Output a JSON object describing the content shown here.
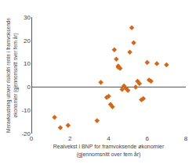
{
  "chart_data": {
    "type": "scatter",
    "xlabel": "Realvekst i BNP for framvoksende økonomier\n(gjennomsnitt over fem år)",
    "ylabel": "Meravkastning utover risikofri rente i framvoksende\nøkonomier (gjennomsnitt over fem år)",
    "x": [
      1.2,
      1.5,
      1.9,
      3.4,
      3.6,
      3.9,
      4.0,
      4.1,
      4.2,
      4.3,
      4.4,
      4.5,
      4.5,
      4.6,
      4.7,
      4.8,
      4.9,
      5.0,
      5.1,
      5.2,
      5.3,
      5.4,
      5.5,
      5.6,
      5.7,
      5.8,
      6.0,
      6.1,
      6.2,
      6.5,
      7.0
    ],
    "values": [
      -13.0,
      -17.5,
      -16.5,
      -14.5,
      2.0,
      -4.5,
      -4.0,
      -7.5,
      -8.5,
      16.0,
      12.0,
      9.0,
      8.5,
      8.0,
      -1.0,
      0.5,
      -0.5,
      -1.5,
      15.0,
      25.5,
      19.0,
      0.0,
      2.5,
      1.5,
      -5.5,
      -5.0,
      10.5,
      3.0,
      2.5,
      10.0,
      9.5
    ],
    "color": "#d4681a",
    "marker": "diamond",
    "xlim": [
      0,
      8
    ],
    "ylim": [
      -20,
      30
    ],
    "xticks": [
      0,
      2,
      4,
      6,
      8
    ],
    "yticks": [
      -20,
      -10,
      0,
      10,
      20,
      30
    ],
    "grid": false
  }
}
